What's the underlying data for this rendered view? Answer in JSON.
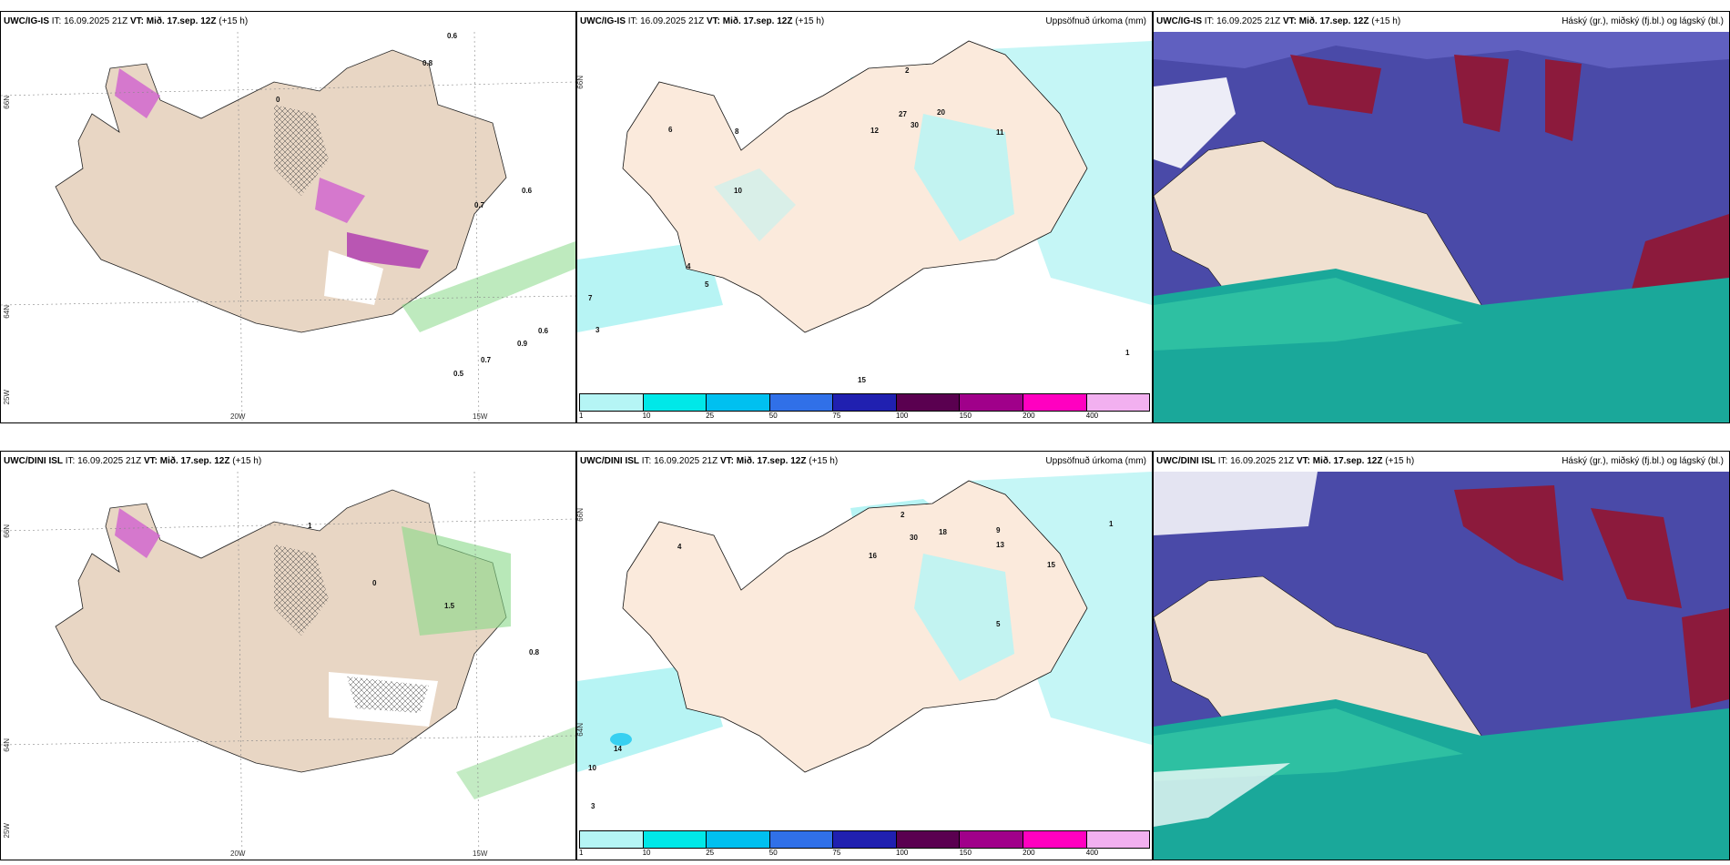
{
  "panels": [
    {
      "model": "UWC/IG-IS",
      "it_label": "IT:",
      "it": "16.09.2025 21Z",
      "vt_label": "VT:",
      "vt": "Mið. 17.sep. 12Z",
      "lead": "(+15 h)",
      "right_title": "",
      "lon_labels": [
        "20W",
        "15W"
      ],
      "lat_labels": [
        "66N",
        "64N",
        "25W"
      ],
      "values": [
        "0.6",
        "0.8",
        "0.7",
        "0.6",
        "0.9",
        "0.7",
        "0.5",
        "0.6",
        "0"
      ]
    },
    {
      "model": "UWC/IG-IS",
      "it_label": "IT:",
      "it": "16.09.2025 21Z",
      "vt_label": "VT:",
      "vt": "Mið. 17.sep. 12Z",
      "lead": "(+15 h)",
      "right_title": "Uppsöfnuð úrkoma (mm)",
      "lat_labels": [
        "66N"
      ],
      "values": [
        "2",
        "1",
        "3",
        "4",
        "5",
        "6",
        "7",
        "8",
        "10",
        "12",
        "20",
        "27",
        "30",
        "11",
        "15"
      ]
    },
    {
      "model": "UWC/IG-IS",
      "it_label": "IT:",
      "it": "16.09.2025 21Z",
      "vt_label": "VT:",
      "vt": "Mið. 17.sep. 12Z",
      "lead": "(+15 h)",
      "right_title": "Háský (gr.), miðský (fj.bl.) og lágský (bl.)"
    },
    {
      "model": "UWC/DINI ISL",
      "it_label": "IT:",
      "it": "16.09.2025 21Z",
      "vt_label": "VT:",
      "vt": "Mið. 17.sep. 12Z",
      "lead": "(+15 h)",
      "right_title": "",
      "lon_labels": [
        "20W",
        "15W"
      ],
      "lat_labels": [
        "66N",
        "64N",
        "25W"
      ],
      "values": [
        "0.8",
        "1",
        "0",
        "1.5"
      ]
    },
    {
      "model": "UWC/DINI ISL",
      "it_label": "IT:",
      "it": "16.09.2025 21Z",
      "vt_label": "VT:",
      "vt": "Mið. 17.sep. 12Z",
      "lead": "(+15 h)",
      "right_title": "Uppsöfnuð úrkoma (mm)",
      "lat_labels": [
        "66N",
        "64N"
      ],
      "values": [
        "2",
        "1",
        "3",
        "4",
        "5",
        "9",
        "13",
        "16",
        "18",
        "30",
        "14",
        "10",
        "15"
      ]
    },
    {
      "model": "UWC/DINI ISL",
      "it_label": "IT:",
      "it": "16.09.2025 21Z",
      "vt_label": "VT:",
      "vt": "Mið. 17.sep. 12Z",
      "lead": "(+15 h)",
      "right_title": "Háský (gr.), miðský (fj.bl.) og lágský (bl.)"
    }
  ],
  "precip_legend": {
    "ticks": [
      "1",
      "10",
      "25",
      "50",
      "75",
      "100",
      "150",
      "200",
      "400"
    ],
    "colors": [
      "#b5f5f5",
      "#00e8e8",
      "#00c0f0",
      "#3070e8",
      "#2020b0",
      "#5a0050",
      "#a0008a",
      "#ff00c0",
      "#f2b0f0"
    ]
  },
  "colors": {
    "land": "#f8e6d6",
    "land_dark": "#e2cdb8",
    "precip_light": "#b7f4f4",
    "cloud_high": "#8c1a3c",
    "cloud_mid": "#4a4aa8",
    "cloud_low": "#1aa89a",
    "snow_pink": "#d060d0",
    "green": "#88d888"
  }
}
